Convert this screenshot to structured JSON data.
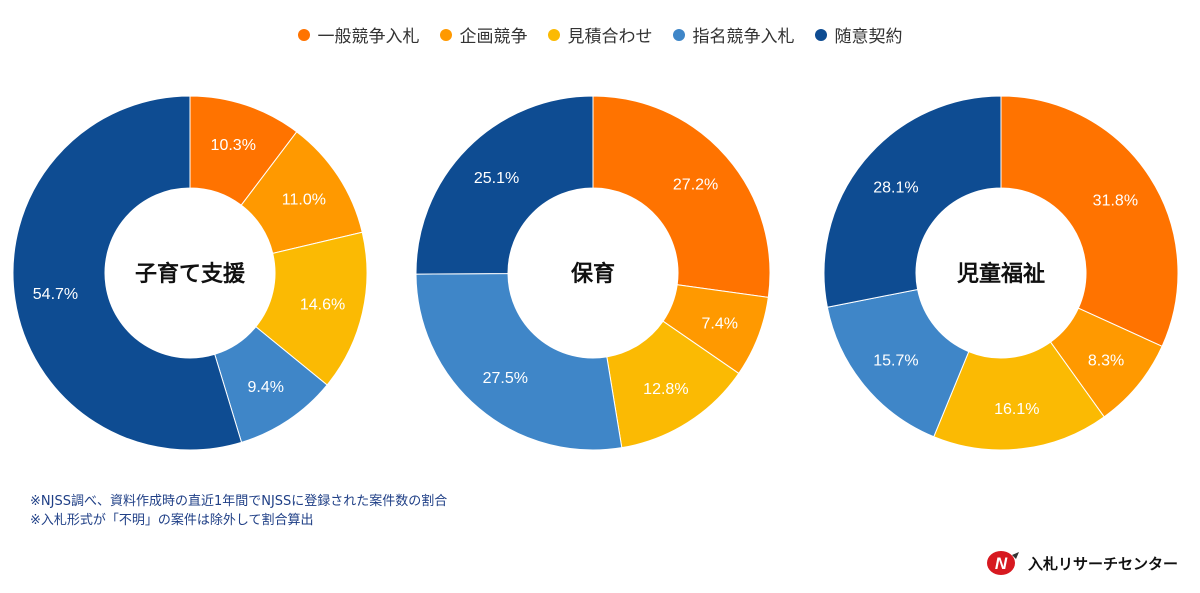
{
  "legend": [
    {
      "label": "一般競争入札",
      "color": "#FF7300"
    },
    {
      "label": "企画競争",
      "color": "#FF9900"
    },
    {
      "label": "見積合わせ",
      "color": "#FBBA03"
    },
    {
      "label": "指名競争入札",
      "color": "#3F86C8"
    },
    {
      "label": "随意契約",
      "color": "#0E4C92"
    }
  ],
  "chart_data": [
    {
      "type": "pie",
      "title": "子育て支援",
      "categories": [
        "一般競争入札",
        "企画競争",
        "見積合わせ",
        "指名競争入札",
        "随意契約"
      ],
      "values": [
        10.3,
        11.0,
        14.6,
        9.4,
        54.7
      ],
      "labels": [
        "10.3%",
        "11.0%",
        "14.6%",
        "9.4%",
        "54.7%"
      ]
    },
    {
      "type": "pie",
      "title": "保育",
      "categories": [
        "一般競争入札",
        "企画競争",
        "見積合わせ",
        "指名競争入札",
        "随意契約"
      ],
      "values": [
        27.2,
        7.4,
        12.8,
        27.5,
        25.1
      ],
      "labels": [
        "27.2%",
        "7.4%",
        "12.8%",
        "27.5%",
        "25.1%"
      ]
    },
    {
      "type": "pie",
      "title": "児童福祉",
      "categories": [
        "一般競争入札",
        "企画競争",
        "見積合わせ",
        "指名競争入札",
        "随意契約"
      ],
      "values": [
        31.8,
        8.3,
        16.1,
        15.7,
        28.1
      ],
      "labels": [
        "31.8%",
        "8.3%",
        "16.1%",
        "15.7%",
        "28.1%"
      ]
    }
  ],
  "notes": [
    "※NJSS調べ、資料作成時の直近1年間でNJSSに登録された案件数の割合",
    "※入札形式が「不明」の案件は除外して割合算出"
  ],
  "brand": {
    "logo_text": "N",
    "name": "入札リサーチセンター",
    "logo_color": "#D71920"
  }
}
